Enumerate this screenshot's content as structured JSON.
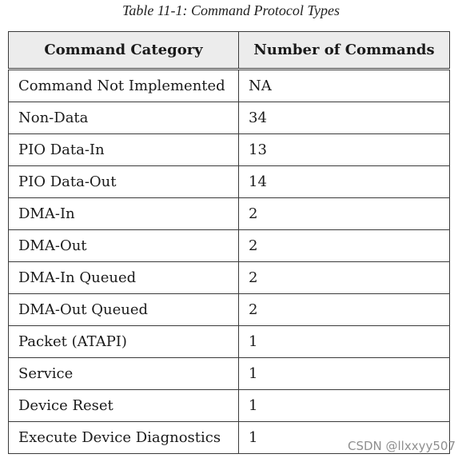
{
  "caption": "Table 11-1: Command Protocol Types",
  "table": {
    "headers": [
      "Command Category",
      "Number of Commands"
    ],
    "rows": [
      [
        "Command Not Implemented",
        "NA"
      ],
      [
        "Non-Data",
        "34"
      ],
      [
        "PIO Data-In",
        "13"
      ],
      [
        "PIO Data-Out",
        "14"
      ],
      [
        "DMA-In",
        "2"
      ],
      [
        "DMA-Out",
        "2"
      ],
      [
        "DMA-In Queued",
        "2"
      ],
      [
        "DMA-Out Queued",
        "2"
      ],
      [
        "Packet (ATAPI)",
        "1"
      ],
      [
        "Service",
        "1"
      ],
      [
        "Device Reset",
        "1"
      ],
      [
        "Execute Device Diagnostics",
        "1"
      ]
    ]
  },
  "watermark": "CSDN @llxxyy507"
}
